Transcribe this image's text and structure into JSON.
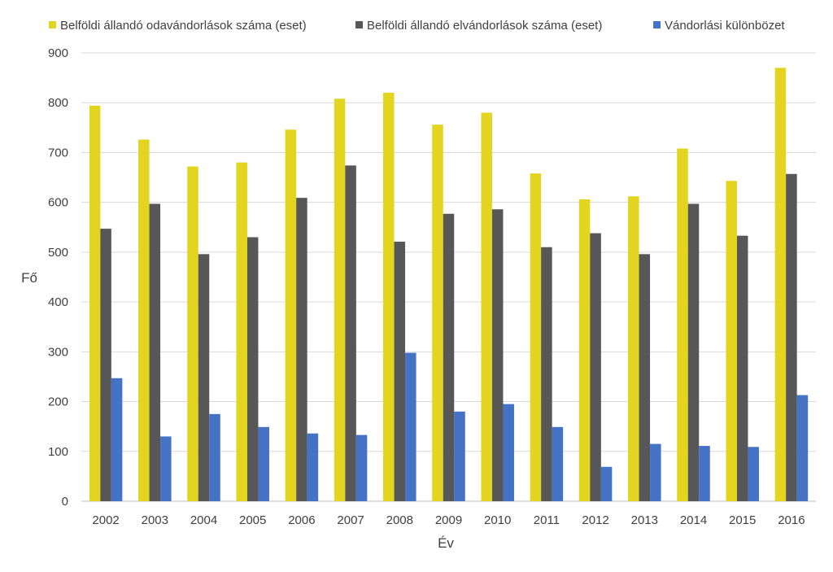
{
  "chart_data": {
    "type": "bar",
    "title": "",
    "xlabel": "Év",
    "ylabel": "Fő",
    "ylim": [
      0,
      900
    ],
    "yticks": [
      "0",
      "100",
      "200",
      "300",
      "400",
      "500",
      "600",
      "700",
      "800",
      "900"
    ],
    "grid": true,
    "legend_position": "top",
    "categories": [
      "2002",
      "2003",
      "2004",
      "2005",
      "2006",
      "2007",
      "2008",
      "2009",
      "2010",
      "2011",
      "2012",
      "2013",
      "2014",
      "2015",
      "2016"
    ],
    "series": [
      {
        "name": "Belföldi állandó odavándorlások száma (eset)",
        "color": "#e2d41f",
        "values": [
          794,
          726,
          672,
          680,
          746,
          808,
          820,
          756,
          780,
          658,
          606,
          612,
          708,
          643,
          870
        ]
      },
      {
        "name": "Belföldi állandó elvándorlások száma (eset)",
        "color": "#575757",
        "values": [
          547,
          597,
          496,
          530,
          609,
          674,
          521,
          577,
          586,
          510,
          538,
          496,
          597,
          533,
          657
        ]
      },
      {
        "name": "Vándorlási különbözet",
        "color": "#4472c4",
        "values": [
          247,
          130,
          175,
          149,
          136,
          133,
          298,
          180,
          195,
          149,
          69,
          115,
          111,
          109,
          213
        ]
      }
    ]
  }
}
